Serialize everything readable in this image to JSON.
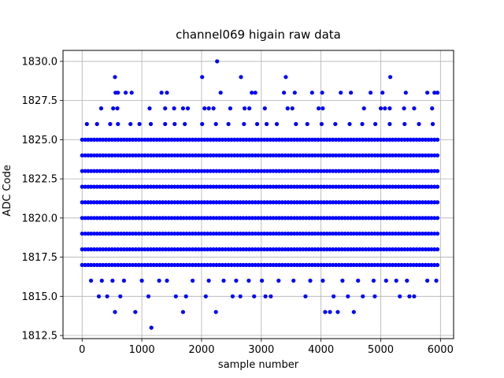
{
  "chart_data": {
    "type": "scatter",
    "title": "channel069 higain raw data",
    "xlabel": "sample number",
    "ylabel": "ADC Code",
    "xlim": [
      -320,
      6220
    ],
    "ylim": [
      1812.3,
      1830.7
    ],
    "xticks": [
      0,
      1000,
      2000,
      3000,
      4000,
      5000,
      6000
    ],
    "xtick_labels": [
      "0",
      "1000",
      "2000",
      "3000",
      "4000",
      "5000",
      "6000"
    ],
    "yticks": [
      1812.5,
      1815.0,
      1817.5,
      1820.0,
      1822.5,
      1825.0,
      1827.5,
      1830.0
    ],
    "ytick_labels": [
      "1812.5",
      "1815.0",
      "1817.5",
      "1820.0",
      "1822.5",
      "1825.0",
      "1827.5",
      "1830.0"
    ],
    "grid": true,
    "marker_color": "#0000ff",
    "series": [
      {
        "dense_levels": {
          "x_range": [
            0,
            5950
          ],
          "y_values": [
            1817,
            1818,
            1819,
            1820,
            1821,
            1822,
            1823,
            1824,
            1825
          ]
        },
        "sparse_points": [
          {
            "x": 1160,
            "y": 1813
          },
          {
            "x": 550,
            "y": 1814
          },
          {
            "x": 890,
            "y": 1814
          },
          {
            "x": 1690,
            "y": 1814
          },
          {
            "x": 2240,
            "y": 1814
          },
          {
            "x": 4070,
            "y": 1814
          },
          {
            "x": 4150,
            "y": 1814
          },
          {
            "x": 4280,
            "y": 1814
          },
          {
            "x": 4550,
            "y": 1814
          },
          {
            "x": 280,
            "y": 1815
          },
          {
            "x": 420,
            "y": 1815
          },
          {
            "x": 640,
            "y": 1815
          },
          {
            "x": 1110,
            "y": 1815
          },
          {
            "x": 1570,
            "y": 1815
          },
          {
            "x": 1740,
            "y": 1815
          },
          {
            "x": 2070,
            "y": 1815
          },
          {
            "x": 2520,
            "y": 1815
          },
          {
            "x": 2650,
            "y": 1815
          },
          {
            "x": 2880,
            "y": 1815
          },
          {
            "x": 3070,
            "y": 1815
          },
          {
            "x": 3160,
            "y": 1815
          },
          {
            "x": 3740,
            "y": 1815
          },
          {
            "x": 4210,
            "y": 1815
          },
          {
            "x": 4450,
            "y": 1815
          },
          {
            "x": 4700,
            "y": 1815
          },
          {
            "x": 4900,
            "y": 1815
          },
          {
            "x": 5320,
            "y": 1815
          },
          {
            "x": 5480,
            "y": 1815
          },
          {
            "x": 5560,
            "y": 1815
          },
          {
            "x": 150,
            "y": 1816
          },
          {
            "x": 330,
            "y": 1816
          },
          {
            "x": 510,
            "y": 1816
          },
          {
            "x": 700,
            "y": 1816
          },
          {
            "x": 1000,
            "y": 1816
          },
          {
            "x": 1290,
            "y": 1816
          },
          {
            "x": 1420,
            "y": 1816
          },
          {
            "x": 1850,
            "y": 1816
          },
          {
            "x": 2120,
            "y": 1816
          },
          {
            "x": 2370,
            "y": 1816
          },
          {
            "x": 2580,
            "y": 1816
          },
          {
            "x": 2790,
            "y": 1816
          },
          {
            "x": 3010,
            "y": 1816
          },
          {
            "x": 3290,
            "y": 1816
          },
          {
            "x": 3540,
            "y": 1816
          },
          {
            "x": 3820,
            "y": 1816
          },
          {
            "x": 4030,
            "y": 1816
          },
          {
            "x": 4360,
            "y": 1816
          },
          {
            "x": 4620,
            "y": 1816
          },
          {
            "x": 4880,
            "y": 1816
          },
          {
            "x": 5090,
            "y": 1816
          },
          {
            "x": 5260,
            "y": 1816
          },
          {
            "x": 5440,
            "y": 1816
          },
          {
            "x": 5780,
            "y": 1816
          },
          {
            "x": 5930,
            "y": 1816
          },
          {
            "x": 80,
            "y": 1826
          },
          {
            "x": 250,
            "y": 1826
          },
          {
            "x": 470,
            "y": 1826
          },
          {
            "x": 600,
            "y": 1826
          },
          {
            "x": 810,
            "y": 1826
          },
          {
            "x": 960,
            "y": 1826
          },
          {
            "x": 1150,
            "y": 1826
          },
          {
            "x": 1390,
            "y": 1826
          },
          {
            "x": 1550,
            "y": 1826
          },
          {
            "x": 1720,
            "y": 1826
          },
          {
            "x": 2010,
            "y": 1826
          },
          {
            "x": 2240,
            "y": 1826
          },
          {
            "x": 2450,
            "y": 1826
          },
          {
            "x": 2710,
            "y": 1826
          },
          {
            "x": 2930,
            "y": 1826
          },
          {
            "x": 3090,
            "y": 1826
          },
          {
            "x": 3260,
            "y": 1826
          },
          {
            "x": 3580,
            "y": 1826
          },
          {
            "x": 3770,
            "y": 1826
          },
          {
            "x": 4010,
            "y": 1826
          },
          {
            "x": 4240,
            "y": 1826
          },
          {
            "x": 4480,
            "y": 1826
          },
          {
            "x": 4690,
            "y": 1826
          },
          {
            "x": 4910,
            "y": 1826
          },
          {
            "x": 5150,
            "y": 1826
          },
          {
            "x": 5400,
            "y": 1826
          },
          {
            "x": 5640,
            "y": 1826
          },
          {
            "x": 5870,
            "y": 1826
          },
          {
            "x": 320,
            "y": 1827
          },
          {
            "x": 520,
            "y": 1827
          },
          {
            "x": 590,
            "y": 1827
          },
          {
            "x": 1130,
            "y": 1827
          },
          {
            "x": 1390,
            "y": 1827
          },
          {
            "x": 1540,
            "y": 1827
          },
          {
            "x": 1690,
            "y": 1827
          },
          {
            "x": 1770,
            "y": 1827
          },
          {
            "x": 2050,
            "y": 1827
          },
          {
            "x": 2120,
            "y": 1827
          },
          {
            "x": 2200,
            "y": 1827
          },
          {
            "x": 2480,
            "y": 1827
          },
          {
            "x": 2720,
            "y": 1827
          },
          {
            "x": 2800,
            "y": 1827
          },
          {
            "x": 3060,
            "y": 1827
          },
          {
            "x": 3440,
            "y": 1827
          },
          {
            "x": 3520,
            "y": 1827
          },
          {
            "x": 3960,
            "y": 1827
          },
          {
            "x": 4030,
            "y": 1827
          },
          {
            "x": 4720,
            "y": 1827
          },
          {
            "x": 5000,
            "y": 1827
          },
          {
            "x": 5070,
            "y": 1827
          },
          {
            "x": 5150,
            "y": 1827
          },
          {
            "x": 5390,
            "y": 1827
          },
          {
            "x": 5560,
            "y": 1827
          },
          {
            "x": 5860,
            "y": 1827
          },
          {
            "x": 560,
            "y": 1828
          },
          {
            "x": 600,
            "y": 1828
          },
          {
            "x": 730,
            "y": 1828
          },
          {
            "x": 830,
            "y": 1828
          },
          {
            "x": 1330,
            "y": 1828
          },
          {
            "x": 1420,
            "y": 1828
          },
          {
            "x": 2320,
            "y": 1828
          },
          {
            "x": 2840,
            "y": 1828
          },
          {
            "x": 2900,
            "y": 1828
          },
          {
            "x": 3380,
            "y": 1828
          },
          {
            "x": 3560,
            "y": 1828
          },
          {
            "x": 3850,
            "y": 1828
          },
          {
            "x": 4020,
            "y": 1828
          },
          {
            "x": 4330,
            "y": 1828
          },
          {
            "x": 4500,
            "y": 1828
          },
          {
            "x": 4830,
            "y": 1828
          },
          {
            "x": 5030,
            "y": 1828
          },
          {
            "x": 5420,
            "y": 1828
          },
          {
            "x": 5780,
            "y": 1828
          },
          {
            "x": 5900,
            "y": 1828
          },
          {
            "x": 5950,
            "y": 1828
          },
          {
            "x": 550,
            "y": 1829
          },
          {
            "x": 2010,
            "y": 1829
          },
          {
            "x": 2660,
            "y": 1829
          },
          {
            "x": 3410,
            "y": 1829
          },
          {
            "x": 5160,
            "y": 1829
          },
          {
            "x": 2260,
            "y": 1830
          }
        ]
      }
    ]
  }
}
